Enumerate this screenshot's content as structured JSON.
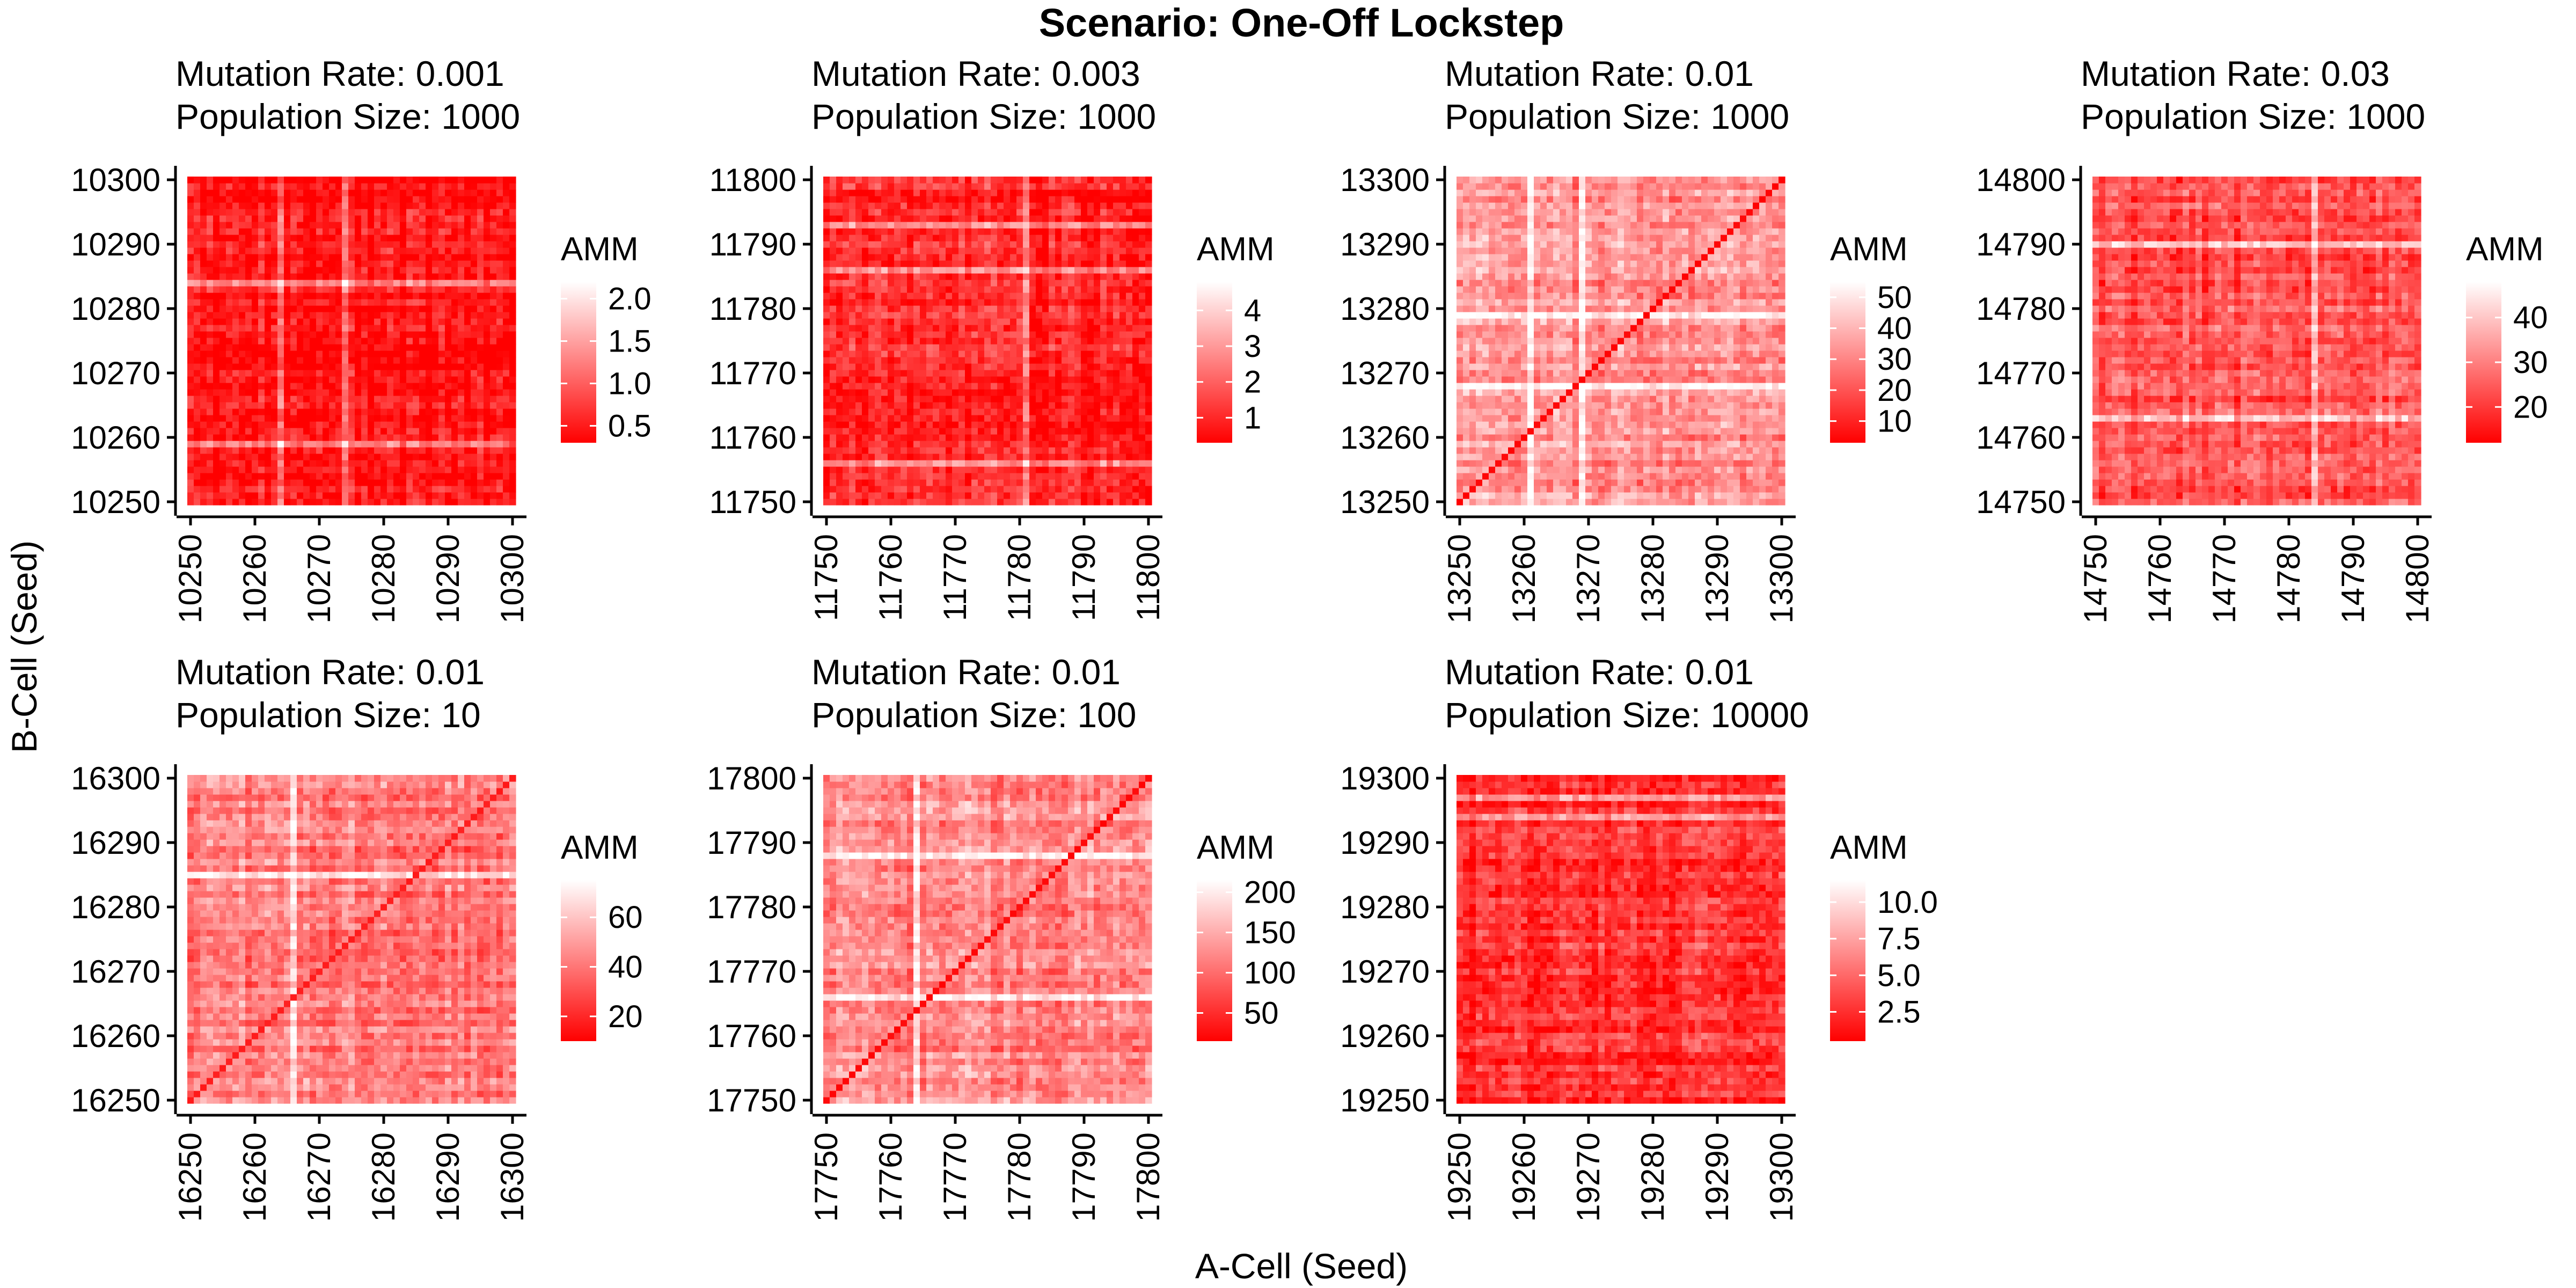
{
  "title": "Scenario: One-Off Lockstep",
  "xlabel": "A-Cell (Seed)",
  "ylabel": "B-Cell (Seed)",
  "colors": {
    "low": "#ff0000",
    "high": "#ffffff"
  },
  "chart_data": [
    {
      "type": "heatmap",
      "mutation_rate_label": "Mutation Rate: 0.001",
      "population_size_label": "Population Size: 1000",
      "x_range": [
        10250,
        10300
      ],
      "y_range": [
        10250,
        10300
      ],
      "x_ticks": [
        "10250",
        "10260",
        "10270",
        "10280",
        "10290",
        "10300"
      ],
      "y_ticks": [
        "10250",
        "10260",
        "10270",
        "10280",
        "10290",
        "10300"
      ],
      "legend_title": "AMM",
      "value_range": [
        0.3,
        2.2
      ],
      "legend_ticks": [
        0.5,
        1.0,
        1.5,
        2.0
      ],
      "legend_labels": [
        "0.5",
        "1.0",
        "1.5",
        "2.0"
      ],
      "typical_value": 0.45,
      "diagonal_value": null,
      "bright_rows": [
        10259,
        10284
      ],
      "bright_cols": [
        10264,
        10274
      ]
    },
    {
      "type": "heatmap",
      "mutation_rate_label": "Mutation Rate: 0.003",
      "population_size_label": "Population Size: 1000",
      "x_range": [
        11750,
        11800
      ],
      "y_range": [
        11750,
        11800
      ],
      "x_ticks": [
        "11750",
        "11760",
        "11770",
        "11780",
        "11790",
        "11800"
      ],
      "y_ticks": [
        "11750",
        "11760",
        "11770",
        "11780",
        "11790",
        "11800"
      ],
      "legend_title": "AMM",
      "value_range": [
        0.3,
        4.8
      ],
      "legend_ticks": [
        1,
        2,
        3,
        4
      ],
      "legend_labels": [
        "1",
        "2",
        "3",
        "4"
      ],
      "typical_value": 0.9,
      "diagonal_value": null,
      "bright_rows": [
        11793,
        11786,
        11756
      ],
      "bright_cols": [
        11781
      ]
    },
    {
      "type": "heatmap",
      "mutation_rate_label": "Mutation Rate: 0.01",
      "population_size_label": "Population Size: 1000",
      "x_range": [
        13250,
        13300
      ],
      "y_range": [
        13250,
        13300
      ],
      "x_ticks": [
        "13250",
        "13260",
        "13270",
        "13280",
        "13290",
        "13300"
      ],
      "y_ticks": [
        "13250",
        "13260",
        "13270",
        "13280",
        "13290",
        "13300"
      ],
      "legend_title": "AMM",
      "value_range": [
        3,
        55
      ],
      "legend_ticks": [
        10,
        20,
        30,
        40,
        50
      ],
      "legend_labels": [
        "10",
        "20",
        "30",
        "40",
        "50"
      ],
      "typical_value": 33,
      "diagonal_value": 3,
      "bright_rows": [
        13268,
        13279
      ],
      "bright_cols": [
        13269,
        13261
      ]
    },
    {
      "type": "heatmap",
      "mutation_rate_label": "Mutation Rate: 0.03",
      "population_size_label": "Population Size: 1000",
      "x_range": [
        14750,
        14800
      ],
      "y_range": [
        14750,
        14800
      ],
      "x_ticks": [
        "14750",
        "14760",
        "14770",
        "14780",
        "14790",
        "14800"
      ],
      "y_ticks": [
        "14750",
        "14760",
        "14770",
        "14780",
        "14790",
        "14800"
      ],
      "legend_title": "AMM",
      "value_range": [
        12,
        48
      ],
      "legend_ticks": [
        20,
        30,
        40
      ],
      "legend_labels": [
        "20",
        "30",
        "40"
      ],
      "typical_value": 24,
      "diagonal_value": null,
      "bright_rows": [
        14763,
        14790
      ],
      "bright_cols": [
        14784
      ]
    },
    {
      "type": "heatmap",
      "mutation_rate_label": "Mutation Rate: 0.01",
      "population_size_label": "Population Size: 10",
      "x_range": [
        16250,
        16300
      ],
      "y_range": [
        16250,
        16300
      ],
      "x_ticks": [
        "16250",
        "16260",
        "16270",
        "16280",
        "16290",
        "16300"
      ],
      "y_ticks": [
        "16250",
        "16260",
        "16270",
        "16280",
        "16290",
        "16300"
      ],
      "legend_title": "AMM",
      "value_range": [
        10,
        75
      ],
      "legend_ticks": [
        20,
        40,
        60
      ],
      "legend_labels": [
        "20",
        "40",
        "60"
      ],
      "typical_value": 42,
      "diagonal_value": 16,
      "bright_rows": [
        16285
      ],
      "bright_cols": [
        16266
      ]
    },
    {
      "type": "heatmap",
      "mutation_rate_label": "Mutation Rate: 0.01",
      "population_size_label": "Population Size: 100",
      "x_range": [
        17750,
        17800
      ],
      "y_range": [
        17750,
        17800
      ],
      "x_ticks": [
        "17750",
        "17760",
        "17770",
        "17780",
        "17790",
        "17800"
      ],
      "y_ticks": [
        "17750",
        "17760",
        "17770",
        "17780",
        "17790",
        "17800"
      ],
      "legend_title": "AMM",
      "value_range": [
        15,
        215
      ],
      "legend_ticks": [
        50,
        100,
        150,
        200
      ],
      "legend_labels": [
        "50",
        "100",
        "150",
        "200"
      ],
      "typical_value": 120,
      "diagonal_value": 18,
      "bright_rows": [
        17766,
        17788
      ],
      "bright_cols": [
        17764
      ]
    },
    {
      "type": "heatmap",
      "mutation_rate_label": "Mutation Rate: 0.01",
      "population_size_label": "Population Size: 10000",
      "x_range": [
        19250,
        19300
      ],
      "y_range": [
        19250,
        19300
      ],
      "x_ticks": [
        "19250",
        "19260",
        "19270",
        "19280",
        "19290",
        "19300"
      ],
      "y_ticks": [
        "19250",
        "19260",
        "19270",
        "19280",
        "19290",
        "19300"
      ],
      "legend_title": "AMM",
      "value_range": [
        0.5,
        11.5
      ],
      "legend_ticks": [
        2.5,
        5.0,
        7.5,
        10.0
      ],
      "legend_labels": [
        "2.5",
        "5.0",
        "7.5",
        "10.0"
      ],
      "typical_value": 2.4,
      "diagonal_value": null,
      "bright_rows": [
        19294,
        19297
      ],
      "bright_cols": []
    }
  ]
}
